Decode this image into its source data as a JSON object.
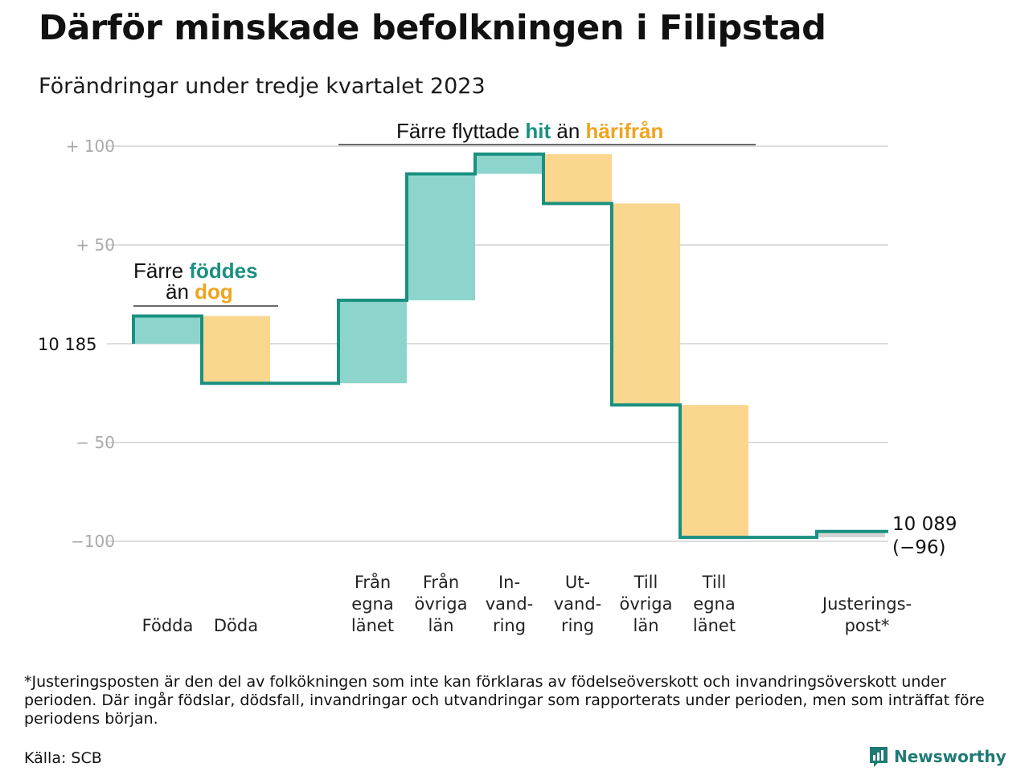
{
  "title": "Därför minskade befolkningen i Filipstad",
  "subtitle": "Förändringar under tredje kvartalet 2023",
  "colors": {
    "increase": "#8dd5cc",
    "decrease": "#fbd68f",
    "line": "#1a9080",
    "adjustment": "#d4d4d4",
    "accent_teal": "#1a9080",
    "accent_orange": "#f0a41e",
    "grid": "#dddddd"
  },
  "chart_data": {
    "type": "waterfall",
    "start_value": 10185,
    "start_label": "10  185",
    "end_label": "10 089",
    "end_change_label": "(−96)",
    "yticks": [
      {
        "value": 100,
        "label": "+  100"
      },
      {
        "value": 50,
        "label": "+  50"
      },
      {
        "value": 0,
        "label": ""
      },
      {
        "value": -50,
        "label": "−  50"
      },
      {
        "value": -100,
        "label": "−100"
      }
    ],
    "ylim": [
      -110,
      110
    ],
    "steps": [
      {
        "label": [
          "Födda"
        ],
        "change": 14
      },
      {
        "label": [
          "Döda"
        ],
        "change": -34
      },
      {
        "label": [],
        "change": 0
      },
      {
        "label": [
          "Från",
          "egna",
          "länet"
        ],
        "change": 42
      },
      {
        "label": [
          "Från",
          "övriga",
          "län"
        ],
        "change": 64
      },
      {
        "label": [
          "In-",
          "vand-",
          "ring"
        ],
        "change": 10
      },
      {
        "label": [
          "Ut-",
          "vand-",
          "ring"
        ],
        "change": -25
      },
      {
        "label": [
          "Till",
          "övriga",
          "län"
        ],
        "change": -102
      },
      {
        "label": [
          "Till",
          "egna",
          "länet"
        ],
        "change": -67
      },
      {
        "label": [],
        "change": 0
      },
      {
        "label": [
          "Justerings-",
          "post*"
        ],
        "change": 3
      }
    ],
    "annotations": [
      {
        "parts": [
          "Färre ",
          "föddes"
        ],
        "parts2": [
          "än ",
          "dog"
        ]
      },
      {
        "parts": [
          "Färre flyttade ",
          "hit",
          " än ",
          "härifrån"
        ]
      }
    ]
  },
  "footnote": "*Justeringsposten är den del av folkökningen som inte kan förklaras av födelseöverskott och invandringsöverskott under perioden. Där ingår födslar, dödsfall, invandringar och utvandringar som rapporterats under perioden, men som inträffat före periodens början.",
  "source": "Källa: SCB",
  "logo_text": "Newsworthy",
  "logo_icon": "bar-chart-speech-icon"
}
